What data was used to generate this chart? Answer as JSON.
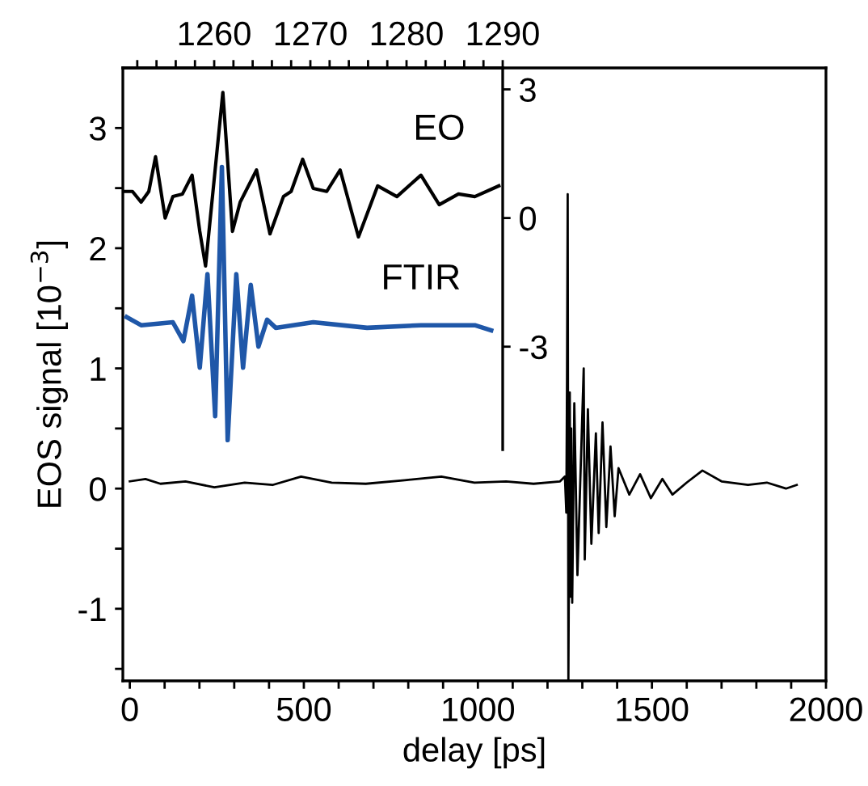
{
  "chart_data": [
    {
      "type": "line",
      "xlabel": "delay [ps]",
      "ylabel": "EOS signal [10$^{−3}$]",
      "xlim": [
        -20,
        2000
      ],
      "xticks": [
        0,
        {
          "value": 100,
          "label": null
        },
        {
          "value": 200,
          "label": null
        },
        {
          "value": 300,
          "label": null
        },
        {
          "value": 400,
          "label": null
        },
        500,
        {
          "value": 600,
          "label": null
        },
        {
          "value": 700,
          "label": null
        },
        {
          "value": 800,
          "label": null
        },
        {
          "value": 900,
          "label": null
        },
        1000,
        {
          "value": 1100,
          "label": null
        },
        {
          "value": 1200,
          "label": null
        },
        {
          "value": 1300,
          "label": null
        },
        {
          "value": 1400,
          "label": null
        },
        1500,
        {
          "value": 1600,
          "label": null
        },
        {
          "value": 1700,
          "label": null
        },
        {
          "value": 1800,
          "label": null
        },
        {
          "value": 1900,
          "label": null
        },
        2000
      ],
      "ylim": [
        -1.6,
        3.5
      ],
      "yticks": [
        {
          "value": -1.5,
          "label": null
        },
        -1,
        {
          "value": -0.5,
          "label": null
        },
        0,
        {
          "value": 0.5,
          "label": null
        },
        1,
        {
          "value": 1.5,
          "label": null
        },
        2,
        {
          "value": 2.5,
          "label": null
        },
        3
      ],
      "grid": false,
      "legend": false,
      "series": [
        {
          "color": "#000000",
          "x": [
            0,
            45,
            88,
            160,
            243,
            330,
            410,
            492,
            580,
            678,
            790,
            895,
            990,
            1081,
            1160,
            1236,
            1250,
            1254,
            1256,
            1258,
            1260,
            1264,
            1266,
            1268,
            1271,
            1277,
            1286,
            1304,
            1307,
            1316,
            1326,
            1339,
            1347,
            1358,
            1369,
            1381,
            1393,
            1404,
            1435,
            1466,
            1497,
            1530,
            1559,
            1600,
            1645,
            1700,
            1776,
            1830,
            1885,
            1916
          ],
          "values": [
            0.06,
            0.08,
            0.04,
            0.06,
            0.01,
            0.05,
            0.03,
            0.1,
            0.05,
            0.04,
            0.07,
            0.1,
            0.05,
            0.06,
            0.04,
            0.06,
            0.1,
            -0.2,
            0.9,
            2.45,
            -1.6,
            0.8,
            -0.9,
            0.5,
            -0.95,
            0.71,
            -0.72,
            1.0,
            -0.59,
            0.66,
            -0.46,
            0.46,
            -0.37,
            0.55,
            -0.32,
            0.35,
            -0.23,
            0.17,
            -0.05,
            0.12,
            -0.08,
            0.08,
            -0.05,
            0.05,
            0.15,
            0.06,
            0.03,
            0.05,
            0.0,
            0.03
          ]
        }
      ]
    },
    {
      "type": "line",
      "xlim": [
        1250.5,
        1290
      ],
      "xticks": [
        {
          "value": 1252,
          "label": null
        },
        {
          "value": 1254,
          "label": null
        },
        {
          "value": 1256,
          "label": null
        },
        {
          "value": 1258,
          "label": null
        },
        1260,
        {
          "value": 1262,
          "label": null
        },
        {
          "value": 1264,
          "label": null
        },
        {
          "value": 1266,
          "label": null
        },
        {
          "value": 1268,
          "label": null
        },
        1270,
        {
          "value": 1272,
          "label": null
        },
        {
          "value": 1274,
          "label": null
        },
        {
          "value": 1276,
          "label": null
        },
        {
          "value": 1278,
          "label": null
        },
        1280,
        {
          "value": 1282,
          "label": null
        },
        {
          "value": 1284,
          "label": null
        },
        {
          "value": 1286,
          "label": null
        },
        {
          "value": 1288,
          "label": null
        },
        1290
      ],
      "ylim": [
        -5.4,
        3.5
      ],
      "yticks": [
        3,
        0,
        {
          "value": -3,
          "label": "-3"
        }
      ],
      "grid": false,
      "legend": false,
      "series": [
        {
          "name": "EO",
          "color": "#000000",
          "x": [
            1250.7,
            1251.5,
            1252.4,
            1253.2,
            1253.9,
            1254.9,
            1255.7,
            1256.7,
            1257.7,
            1258.5,
            1259.1,
            1260.9,
            1261.9,
            1262.7,
            1264.4,
            1265.8,
            1267.2,
            1268.0,
            1269.2,
            1270.3,
            1271.7,
            1273.1,
            1275.0,
            1277.0,
            1279.0,
            1281.5,
            1283.4,
            1285.4,
            1287.1,
            1289.6
          ],
          "values": [
            0.62,
            0.62,
            0.37,
            0.62,
            1.43,
            0.0,
            0.5,
            0.56,
            1.0,
            -0.31,
            -1.12,
            2.93,
            -0.31,
            0.37,
            1.12,
            -0.37,
            0.5,
            0.62,
            1.37,
            0.69,
            0.62,
            1.12,
            -0.44,
            0.75,
            0.5,
            1.0,
            0.31,
            0.56,
            0.5,
            0.75
          ]
        },
        {
          "name": "FTIR",
          "color": "#1f57a8",
          "x": [
            1250.9,
            1252.4,
            1255.7,
            1256.8,
            1257.7,
            1258.5,
            1259.3,
            1260.1,
            1260.8,
            1261.4,
            1262.3,
            1263.0,
            1263.8,
            1264.6,
            1265.5,
            1266.4,
            1270.3,
            1275.9,
            1281.5,
            1287.1,
            1288.8
          ],
          "values": [
            -2.31,
            -2.5,
            -2.43,
            -2.87,
            -1.81,
            -3.49,
            -1.31,
            -4.62,
            1.19,
            -5.18,
            -1.31,
            -3.49,
            -1.56,
            -3.0,
            -2.37,
            -2.56,
            -2.43,
            -2.56,
            -2.5,
            -2.5,
            -2.62
          ]
        }
      ]
    }
  ]
}
